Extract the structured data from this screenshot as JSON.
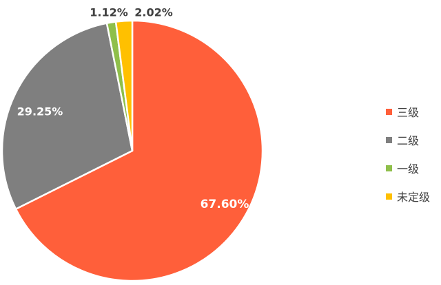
{
  "chart_data": {
    "type": "pie",
    "title": "",
    "categories": [
      "三级",
      "二级",
      "一级",
      "未定级"
    ],
    "values": [
      67.6,
      29.25,
      1.12,
      2.02
    ],
    "value_labels": [
      "67.60%",
      "29.25%",
      "1.12%",
      "2.02%"
    ],
    "colors": [
      "#ff5f3a",
      "#7f7f7f",
      "#8fbf4a",
      "#ffc000"
    ],
    "start_angle_deg": 0,
    "direction": "clockwise",
    "legend_position": "right"
  }
}
